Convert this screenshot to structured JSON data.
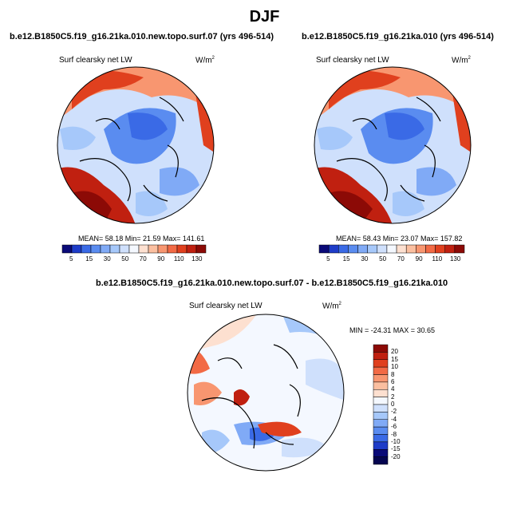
{
  "figure": {
    "title": "DJF"
  },
  "panels": [
    {
      "title": "b.e12.B1850C5.f19_g16.21ka.010.new.topo.surf.07 (yrs 496-514)",
      "variable": "Surf clearsky net LW",
      "units_base": "W/m",
      "units_exp": "2",
      "stats": "MEAN=  58.18  Min=  21.59  Max= 141.61"
    },
    {
      "title": "b.e12.B1850C5.f19_g16.21ka.010 (yrs 496-514)",
      "variable": "Surf clearsky net LW",
      "units_base": "W/m",
      "units_exp": "2",
      "stats": "MEAN=  58.43  Min=  23.07  Max= 157.82"
    },
    {
      "title": "b.e12.B1850C5.f19_g16.21ka.010.new.topo.surf.07 - b.e12.B1850C5.f19_g16.21ka.010",
      "variable": "Surf clearsky net LW",
      "units_base": "W/m",
      "units_exp": "2",
      "stats": "MIN = -24.31 MAX =  30.65"
    }
  ],
  "colorbar_abs": {
    "ticks": [
      "5",
      "15",
      "30",
      "50",
      "70",
      "90",
      "110",
      "130"
    ],
    "colors": [
      "#0a0a78",
      "#1e3cc8",
      "#3a6ae6",
      "#5a8cf0",
      "#80aaf6",
      "#a6c8fa",
      "#cfe0fc",
      "#f4f8ff",
      "#fde0d0",
      "#fbbfa0",
      "#f89670",
      "#f26a45",
      "#e0401e",
      "#c02010",
      "#8c0a06"
    ]
  },
  "colorbar_diff": {
    "ticks": [
      "20",
      "15",
      "10",
      "8",
      "6",
      "4",
      "2",
      "0",
      "-2",
      "-4",
      "-6",
      "-8",
      "-10",
      "-15",
      "-20"
    ],
    "colors": [
      "#8c0a06",
      "#c02010",
      "#e0401e",
      "#f26a45",
      "#f89670",
      "#fbbfa0",
      "#fde0d0",
      "#f4f8ff",
      "#cfe0fc",
      "#a6c8fa",
      "#80aaf6",
      "#5a8cf0",
      "#3a6ae6",
      "#1e3cc8",
      "#0a0a78",
      "#050550"
    ]
  }
}
